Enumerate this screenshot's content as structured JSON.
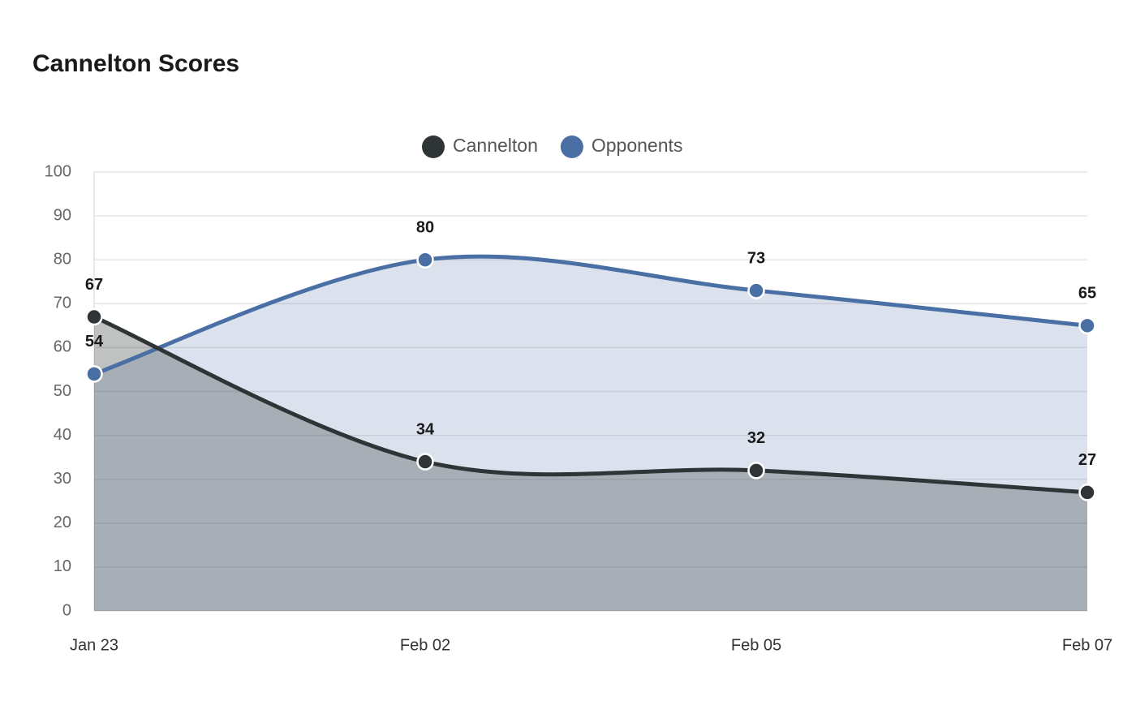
{
  "chart_data": {
    "type": "area",
    "title": "Cannelton Scores",
    "categories": [
      "Jan 23",
      "Feb 02",
      "Feb 05",
      "Feb 07"
    ],
    "series": [
      {
        "name": "Cannelton",
        "color": "#2f3436",
        "values": [
          67,
          34,
          32,
          27
        ]
      },
      {
        "name": "Opponents",
        "color": "#4a6fa5",
        "values": [
          54,
          80,
          73,
          65
        ]
      }
    ],
    "ylim": [
      0,
      100
    ],
    "yticks": [
      0,
      10,
      20,
      30,
      40,
      50,
      60,
      70,
      80,
      90,
      100
    ],
    "grid": true,
    "legend": "top",
    "smooth": true
  }
}
